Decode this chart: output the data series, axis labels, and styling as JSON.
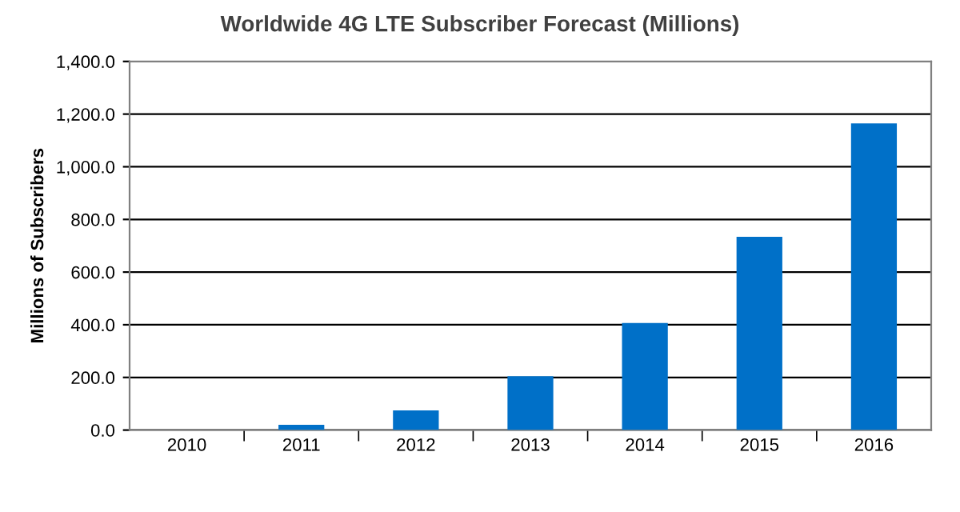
{
  "chart_data": {
    "type": "bar",
    "title": "Worldwide 4G LTE Subscriber Forecast (Millions)",
    "ylabel": "Millions of Subscribers",
    "categories": [
      "2010",
      "2011",
      "2012",
      "2013",
      "2014",
      "2015",
      "2016"
    ],
    "values": [
      null,
      20,
      75,
      205,
      407,
      734,
      1165
    ],
    "color": "#0070c8",
    "ylim": [
      0,
      1400
    ],
    "yticks": [
      {
        "value": 0,
        "label": "0.0"
      },
      {
        "value": 200,
        "label": "200.0"
      },
      {
        "value": 400,
        "label": "400.0"
      },
      {
        "value": 600,
        "label": "600.0"
      },
      {
        "value": 800,
        "label": "800.0"
      },
      {
        "value": 1000,
        "label": "1,000.0"
      },
      {
        "value": 1200,
        "label": "1,200.0"
      },
      {
        "value": 1400,
        "label": "1,400.0"
      }
    ],
    "grid": "y"
  }
}
